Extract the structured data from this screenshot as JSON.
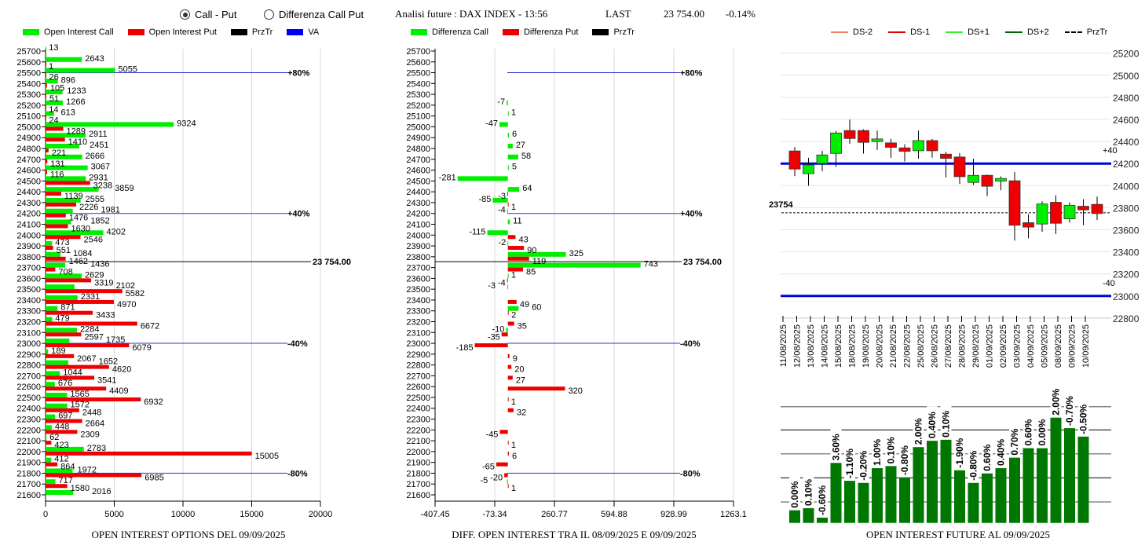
{
  "header": {
    "radio_call_put": "Call - Put",
    "radio_diff": "Differenza Call Put",
    "selected": "Call - Put",
    "analysis_title": "Analisi future : DAX INDEX - 13:56",
    "last_label": "LAST",
    "last_value": "23 754.00",
    "change": "-0.14%"
  },
  "colors": {
    "call": "#00ee00",
    "put": "#ee0000",
    "przTr": "#000000",
    "va": "#0000ee",
    "candle_up": "#00ee00",
    "candle_down": "#ee0000",
    "oi_bar": "#007700"
  },
  "chart_data": [
    {
      "type": "bar",
      "orientation": "horizontal",
      "title": "OPEN INTEREST OPTIONS DEL 09/09/2025",
      "legend": [
        "Open Interest Call",
        "Open Interest Put",
        "PrzTr",
        "VA"
      ],
      "legend_placement": "top",
      "strikes": [
        25700,
        25600,
        25500,
        25400,
        25300,
        25200,
        25100,
        25000,
        24900,
        24800,
        24700,
        24600,
        24500,
        24400,
        24300,
        24200,
        24100,
        24000,
        23900,
        23800,
        23700,
        23600,
        23500,
        23400,
        23300,
        23200,
        23100,
        23000,
        22900,
        22800,
        22700,
        22600,
        22500,
        22400,
        22300,
        22200,
        22100,
        22000,
        21900,
        21800,
        21700,
        21600
      ],
      "series": [
        {
          "name": "Open Interest Call",
          "values": [
            13,
            2643,
            5055,
            896,
            1233,
            1266,
            613,
            9324,
            2911,
            2451,
            2666,
            3067,
            2931,
            3859,
            2555,
            1981,
            1852,
            4202,
            473,
            1084,
            1436,
            2629,
            2102,
            2331,
            871,
            479,
            2284,
            1735,
            189,
            1652,
            1044,
            676,
            1565,
            1572,
            697,
            448,
            62,
            2783,
            412,
            1972,
            717,
            2016
          ]
        },
        {
          "name": "Open Interest Put",
          "values": [
            null,
            1,
            26,
            105,
            51,
            14,
            24,
            1289,
            1410,
            221,
            131,
            116,
            3238,
            1139,
            2226,
            1476,
            1630,
            2546,
            551,
            1462,
            708,
            3319,
            5582,
            4970,
            3433,
            6672,
            2597,
            6079,
            2067,
            4620,
            3541,
            4409,
            6932,
            2448,
            2664,
            2309,
            423,
            15005,
            864,
            6985,
            1580,
            null
          ]
        }
      ],
      "xticks": [
        "0",
        "5000",
        "10000",
        "15000",
        "20000"
      ],
      "xlim": [
        0,
        20000
      ],
      "przTr": {
        "value": 23754,
        "label": "23 754.00"
      },
      "va_lines": [
        {
          "strike": 25500,
          "label": "+80%"
        },
        {
          "strike": 24200,
          "label": "+40%"
        },
        {
          "strike": 23000,
          "label": "-40%"
        },
        {
          "strike": 21800,
          "label": "-80%"
        }
      ],
      "grid": true
    },
    {
      "type": "bar",
      "orientation": "horizontal",
      "title": "DIFF. OPEN INTEREST TRA IL 08/09/2025 E 09/09/2025",
      "legend": [
        "Differenza Call",
        "Differenza Put",
        "PrzTr"
      ],
      "legend_placement": "top",
      "strikes": [
        25700,
        25600,
        25500,
        25400,
        25300,
        25200,
        25100,
        25000,
        24900,
        24800,
        24700,
        24600,
        24500,
        24400,
        24300,
        24200,
        24100,
        24000,
        23900,
        23800,
        23700,
        23600,
        23500,
        23400,
        23300,
        23200,
        23100,
        23000,
        22900,
        22800,
        22700,
        22600,
        22500,
        22400,
        22300,
        22200,
        22100,
        22000,
        21900,
        21800,
        21700,
        21600
      ],
      "series": [
        {
          "name": "Differenza Call",
          "values": [
            null,
            null,
            null,
            null,
            null,
            -7,
            1,
            -47,
            6,
            27,
            58,
            5,
            -281,
            64,
            -85,
            -4,
            11,
            -115,
            -2,
            325,
            743,
            1,
            -3,
            null,
            60,
            null,
            -10,
            null,
            null,
            null,
            null,
            null,
            null,
            null,
            null,
            null,
            null,
            null,
            null,
            null,
            -5,
            null
          ]
        },
        {
          "name": "Differenza Put",
          "values": [
            null,
            null,
            null,
            null,
            null,
            null,
            null,
            null,
            null,
            null,
            null,
            null,
            null,
            -3,
            1,
            null,
            null,
            43,
            90,
            119,
            85,
            -4,
            null,
            49,
            2,
            35,
            -35,
            -185,
            9,
            20,
            27,
            320,
            1,
            32,
            null,
            -45,
            1,
            6,
            -65,
            -20,
            1,
            null
          ]
        }
      ],
      "xticks": [
        "-407.45",
        "-73.34",
        "260.77",
        "594.88",
        "928.99",
        "1263.1"
      ],
      "xlim": [
        -407.45,
        1263.1
      ],
      "przTr": {
        "value": 23754,
        "label": "23 754.00"
      },
      "va_lines": [
        {
          "strike": 25500,
          "label": "+80%"
        },
        {
          "strike": 24200,
          "label": "+40%"
        },
        {
          "strike": 23000,
          "label": "-40%"
        },
        {
          "strike": 21800,
          "label": "-80%"
        }
      ],
      "grid": true
    },
    {
      "type": "candlestick",
      "legend": [
        "DS-2",
        "DS-1",
        "DS+1",
        "DS+2",
        "PrzTr"
      ],
      "legend_colors": [
        "#f08060",
        "#dd0000",
        "#33ee33",
        "#006600",
        "#000000"
      ],
      "legend_placement": "top",
      "dates": [
        "11/08/2025",
        "12/08/2025",
        "13/08/2025",
        "14/08/2025",
        "15/08/2025",
        "18/08/2025",
        "19/08/2025",
        "20/08/2025",
        "21/08/2025",
        "22/08/2025",
        "25/08/2025",
        "26/08/2025",
        "27/08/2025",
        "28/08/2025",
        "29/08/2025",
        "01/09/2025",
        "02/09/2025",
        "03/09/2025",
        "04/09/2025",
        "05/09/2025",
        "08/09/2025",
        "09/09/2025",
        "10/09/2025"
      ],
      "ohlc": [
        [
          24314,
          24349,
          24086,
          24150
        ],
        [
          24108,
          24252,
          23999,
          24188
        ],
        [
          24200,
          24314,
          24129,
          24278
        ],
        [
          24292,
          24496,
          24169,
          24477
        ],
        [
          24499,
          24598,
          24378,
          24427
        ],
        [
          24499,
          24510,
          24290,
          24392
        ],
        [
          24399,
          24499,
          24323,
          24423
        ],
        [
          24387,
          24423,
          24252,
          24347
        ],
        [
          24342,
          24375,
          24219,
          24311
        ],
        [
          24316,
          24499,
          24243,
          24408
        ],
        [
          24408,
          24423,
          24254,
          24316
        ],
        [
          24285,
          24307,
          24074,
          24247
        ],
        [
          24259,
          24295,
          24015,
          24081
        ],
        [
          24029,
          24243,
          24006,
          24093
        ],
        [
          24093,
          24100,
          23904,
          23994
        ],
        [
          24041,
          24084,
          23958,
          24065
        ],
        [
          24044,
          24124,
          23502,
          23641
        ],
        [
          23664,
          23740,
          23522,
          23624
        ],
        [
          23652,
          23858,
          23581,
          23834
        ],
        [
          23849,
          23912,
          23562,
          23659
        ],
        [
          23699,
          23849,
          23664,
          23822
        ],
        [
          23813,
          23877,
          23640,
          23780
        ],
        [
          23830,
          23901,
          23688,
          23747
        ]
      ],
      "yticks": [
        "25200",
        "25000",
        "24800",
        "24600",
        "24400",
        "24200",
        "24000",
        "23800",
        "23600",
        "23400",
        "23200",
        "23000",
        "22800"
      ],
      "ylim": [
        22800,
        25200
      ],
      "lines": [
        {
          "value": 24200,
          "label": "+40"
        },
        {
          "value": 23000,
          "label": "-40"
        }
      ],
      "przTr": {
        "value": 23754,
        "label": "23754"
      },
      "grid": true
    },
    {
      "type": "bar",
      "title": "OPEN INTEREST FUTURE AL 09/09/2025",
      "relative_levels_pct_of_max": [
        12,
        14,
        5,
        57,
        40,
        38,
        52,
        54,
        43,
        72,
        78,
        79,
        50,
        38,
        47,
        52,
        62,
        71,
        71,
        100,
        90,
        82
      ],
      "labels": [
        "0.00%",
        "0.10%",
        "-0.60%",
        "3.60%",
        "-1.10%",
        "-0.20%",
        "1.00%",
        "0.10%",
        "-0.80%",
        "2.00%",
        "0.40%",
        "0.10%",
        "-1.90%",
        "-0.80%",
        "0.60%",
        "0.40%",
        "0.70%",
        "0.60%",
        "0.00%",
        "2.00%",
        "-0.70%",
        "-0.50%"
      ],
      "grid": true
    }
  ]
}
